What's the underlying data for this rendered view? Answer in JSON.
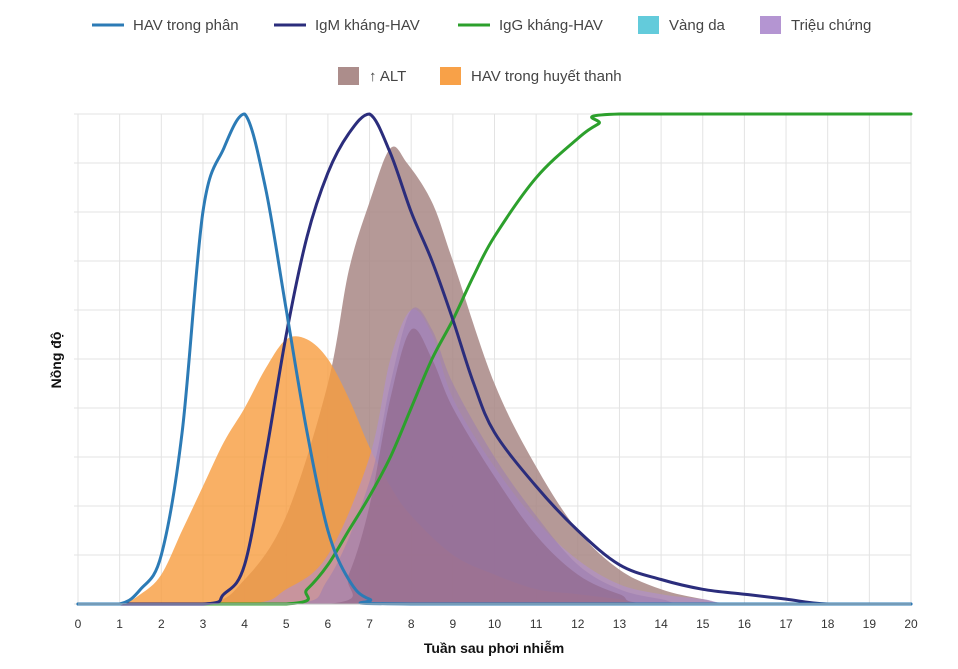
{
  "chart_data": {
    "type": "area",
    "title": "",
    "xlabel": "Tuần sau phơi nhiễm",
    "ylabel": "Nồng độ",
    "xlim": [
      0,
      20
    ],
    "ylim": [
      0,
      100
    ],
    "grid": true,
    "legend_position": "top",
    "x_ticks": [
      "0",
      "1",
      "2",
      "3",
      "4",
      "5",
      "6",
      "7",
      "8",
      "9",
      "10",
      "11",
      "12",
      "13",
      "14",
      "15",
      "16",
      "17",
      "18",
      "19",
      "20"
    ],
    "series": [
      {
        "key": "fecal",
        "name": "HAV trong phân",
        "kind": "line",
        "color": "#2c7bb6",
        "points": [
          [
            0,
            0
          ],
          [
            1,
            0
          ],
          [
            1.5,
            3
          ],
          [
            2,
            10
          ],
          [
            2.5,
            35
          ],
          [
            3,
            80
          ],
          [
            3.5,
            93
          ],
          [
            4,
            100
          ],
          [
            4.5,
            85
          ],
          [
            5,
            60
          ],
          [
            5.5,
            35
          ],
          [
            6,
            15
          ],
          [
            6.5,
            5
          ],
          [
            7,
            1
          ],
          [
            8,
            0
          ],
          [
            20,
            0
          ]
        ]
      },
      {
        "key": "igm",
        "name": "IgM kháng-HAV",
        "kind": "line",
        "color": "#2b2d7c",
        "points": [
          [
            0,
            0
          ],
          [
            3,
            0
          ],
          [
            3.5,
            2
          ],
          [
            4,
            8
          ],
          [
            4.5,
            30
          ],
          [
            5,
            55
          ],
          [
            5.5,
            75
          ],
          [
            6,
            88
          ],
          [
            6.5,
            96
          ],
          [
            7,
            100
          ],
          [
            7.5,
            92
          ],
          [
            8,
            80
          ],
          [
            8.5,
            70
          ],
          [
            9,
            58
          ],
          [
            9.5,
            45
          ],
          [
            10,
            35
          ],
          [
            11,
            24
          ],
          [
            12,
            15
          ],
          [
            13,
            8
          ],
          [
            14,
            5
          ],
          [
            15,
            3
          ],
          [
            16,
            2
          ],
          [
            17,
            1
          ],
          [
            18,
            0
          ],
          [
            20,
            0
          ]
        ]
      },
      {
        "key": "igg",
        "name": "IgG kháng-HAV",
        "kind": "line",
        "color": "#2ca02c",
        "points": [
          [
            0,
            0
          ],
          [
            5,
            0
          ],
          [
            5.5,
            3
          ],
          [
            6,
            8
          ],
          [
            6.5,
            15
          ],
          [
            7,
            22
          ],
          [
            7.5,
            30
          ],
          [
            8,
            40
          ],
          [
            8.5,
            50
          ],
          [
            9,
            58
          ],
          [
            9.5,
            67
          ],
          [
            10,
            75
          ],
          [
            11,
            87
          ],
          [
            12,
            95
          ],
          [
            12.5,
            98
          ],
          [
            13,
            100
          ],
          [
            20,
            100
          ]
        ]
      },
      {
        "key": "jaundice",
        "name": "Vàng da",
        "kind": "area",
        "color": "#5bc8d9",
        "points": []
      },
      {
        "key": "symptoms",
        "name": "Triệu chứng",
        "kind": "area",
        "color": "#b08fd0",
        "points": [
          [
            0,
            0
          ],
          [
            4,
            0
          ],
          [
            5,
            3
          ],
          [
            6,
            10
          ],
          [
            7,
            30
          ],
          [
            7.5,
            50
          ],
          [
            8,
            60
          ],
          [
            8.5,
            55
          ],
          [
            9,
            42
          ],
          [
            10,
            28
          ],
          [
            11,
            17
          ],
          [
            12,
            9
          ],
          [
            13,
            4
          ],
          [
            14,
            2
          ],
          [
            15,
            1
          ],
          [
            16,
            0
          ],
          [
            20,
            0
          ]
        ]
      },
      {
        "key": "alt",
        "name": "↑ ALT",
        "kind": "area",
        "color": "#a88785",
        "points": [
          [
            0,
            0
          ],
          [
            3,
            0
          ],
          [
            4,
            5
          ],
          [
            5,
            18
          ],
          [
            6,
            45
          ],
          [
            6.5,
            68
          ],
          [
            7,
            82
          ],
          [
            7.5,
            93
          ],
          [
            7.9,
            90
          ],
          [
            8.5,
            82
          ],
          [
            9,
            70
          ],
          [
            10,
            45
          ],
          [
            11,
            28
          ],
          [
            12,
            15
          ],
          [
            13,
            7
          ],
          [
            14,
            3
          ],
          [
            15,
            1
          ],
          [
            16,
            0
          ],
          [
            20,
            0
          ]
        ]
      },
      {
        "key": "serum",
        "name": "HAV trong huyết thanh",
        "kind": "area",
        "color": "#f89c3e",
        "points": [
          [
            0,
            0
          ],
          [
            1,
            0
          ],
          [
            1.5,
            2
          ],
          [
            2,
            6
          ],
          [
            2.5,
            15
          ],
          [
            3,
            24
          ],
          [
            3.5,
            33
          ],
          [
            4,
            40
          ],
          [
            4.5,
            48
          ],
          [
            5,
            54
          ],
          [
            5.5,
            54
          ],
          [
            6,
            50
          ],
          [
            6.5,
            42
          ],
          [
            7,
            32
          ],
          [
            7.5,
            24
          ],
          [
            8,
            18
          ],
          [
            9,
            10
          ],
          [
            10,
            6
          ],
          [
            11,
            3
          ],
          [
            12,
            2
          ],
          [
            13,
            1
          ],
          [
            14,
            0
          ],
          [
            20,
            0
          ]
        ]
      },
      {
        "key": "symptoms2",
        "name": "",
        "kind": "area",
        "color": "#9b7cb0",
        "points": [
          [
            0,
            0
          ],
          [
            5,
            0
          ],
          [
            6,
            5
          ],
          [
            7,
            25
          ],
          [
            7.5,
            45
          ],
          [
            8,
            60
          ],
          [
            8.5,
            56
          ],
          [
            9,
            45
          ],
          [
            10,
            30
          ],
          [
            11,
            18
          ],
          [
            12,
            8
          ],
          [
            13,
            3
          ],
          [
            14,
            1
          ],
          [
            15,
            0
          ],
          [
            20,
            0
          ]
        ]
      },
      {
        "key": "symptoms3",
        "name": "",
        "kind": "area",
        "color": "#8a5d7e",
        "points": [
          [
            0,
            0
          ],
          [
            6,
            0
          ],
          [
            6.5,
            6
          ],
          [
            7,
            20
          ],
          [
            7.5,
            42
          ],
          [
            8,
            56
          ],
          [
            8.5,
            50
          ],
          [
            9,
            40
          ],
          [
            10,
            26
          ],
          [
            11,
            14
          ],
          [
            12,
            6
          ],
          [
            13,
            2
          ],
          [
            14,
            0
          ],
          [
            20,
            0
          ]
        ]
      }
    ]
  }
}
